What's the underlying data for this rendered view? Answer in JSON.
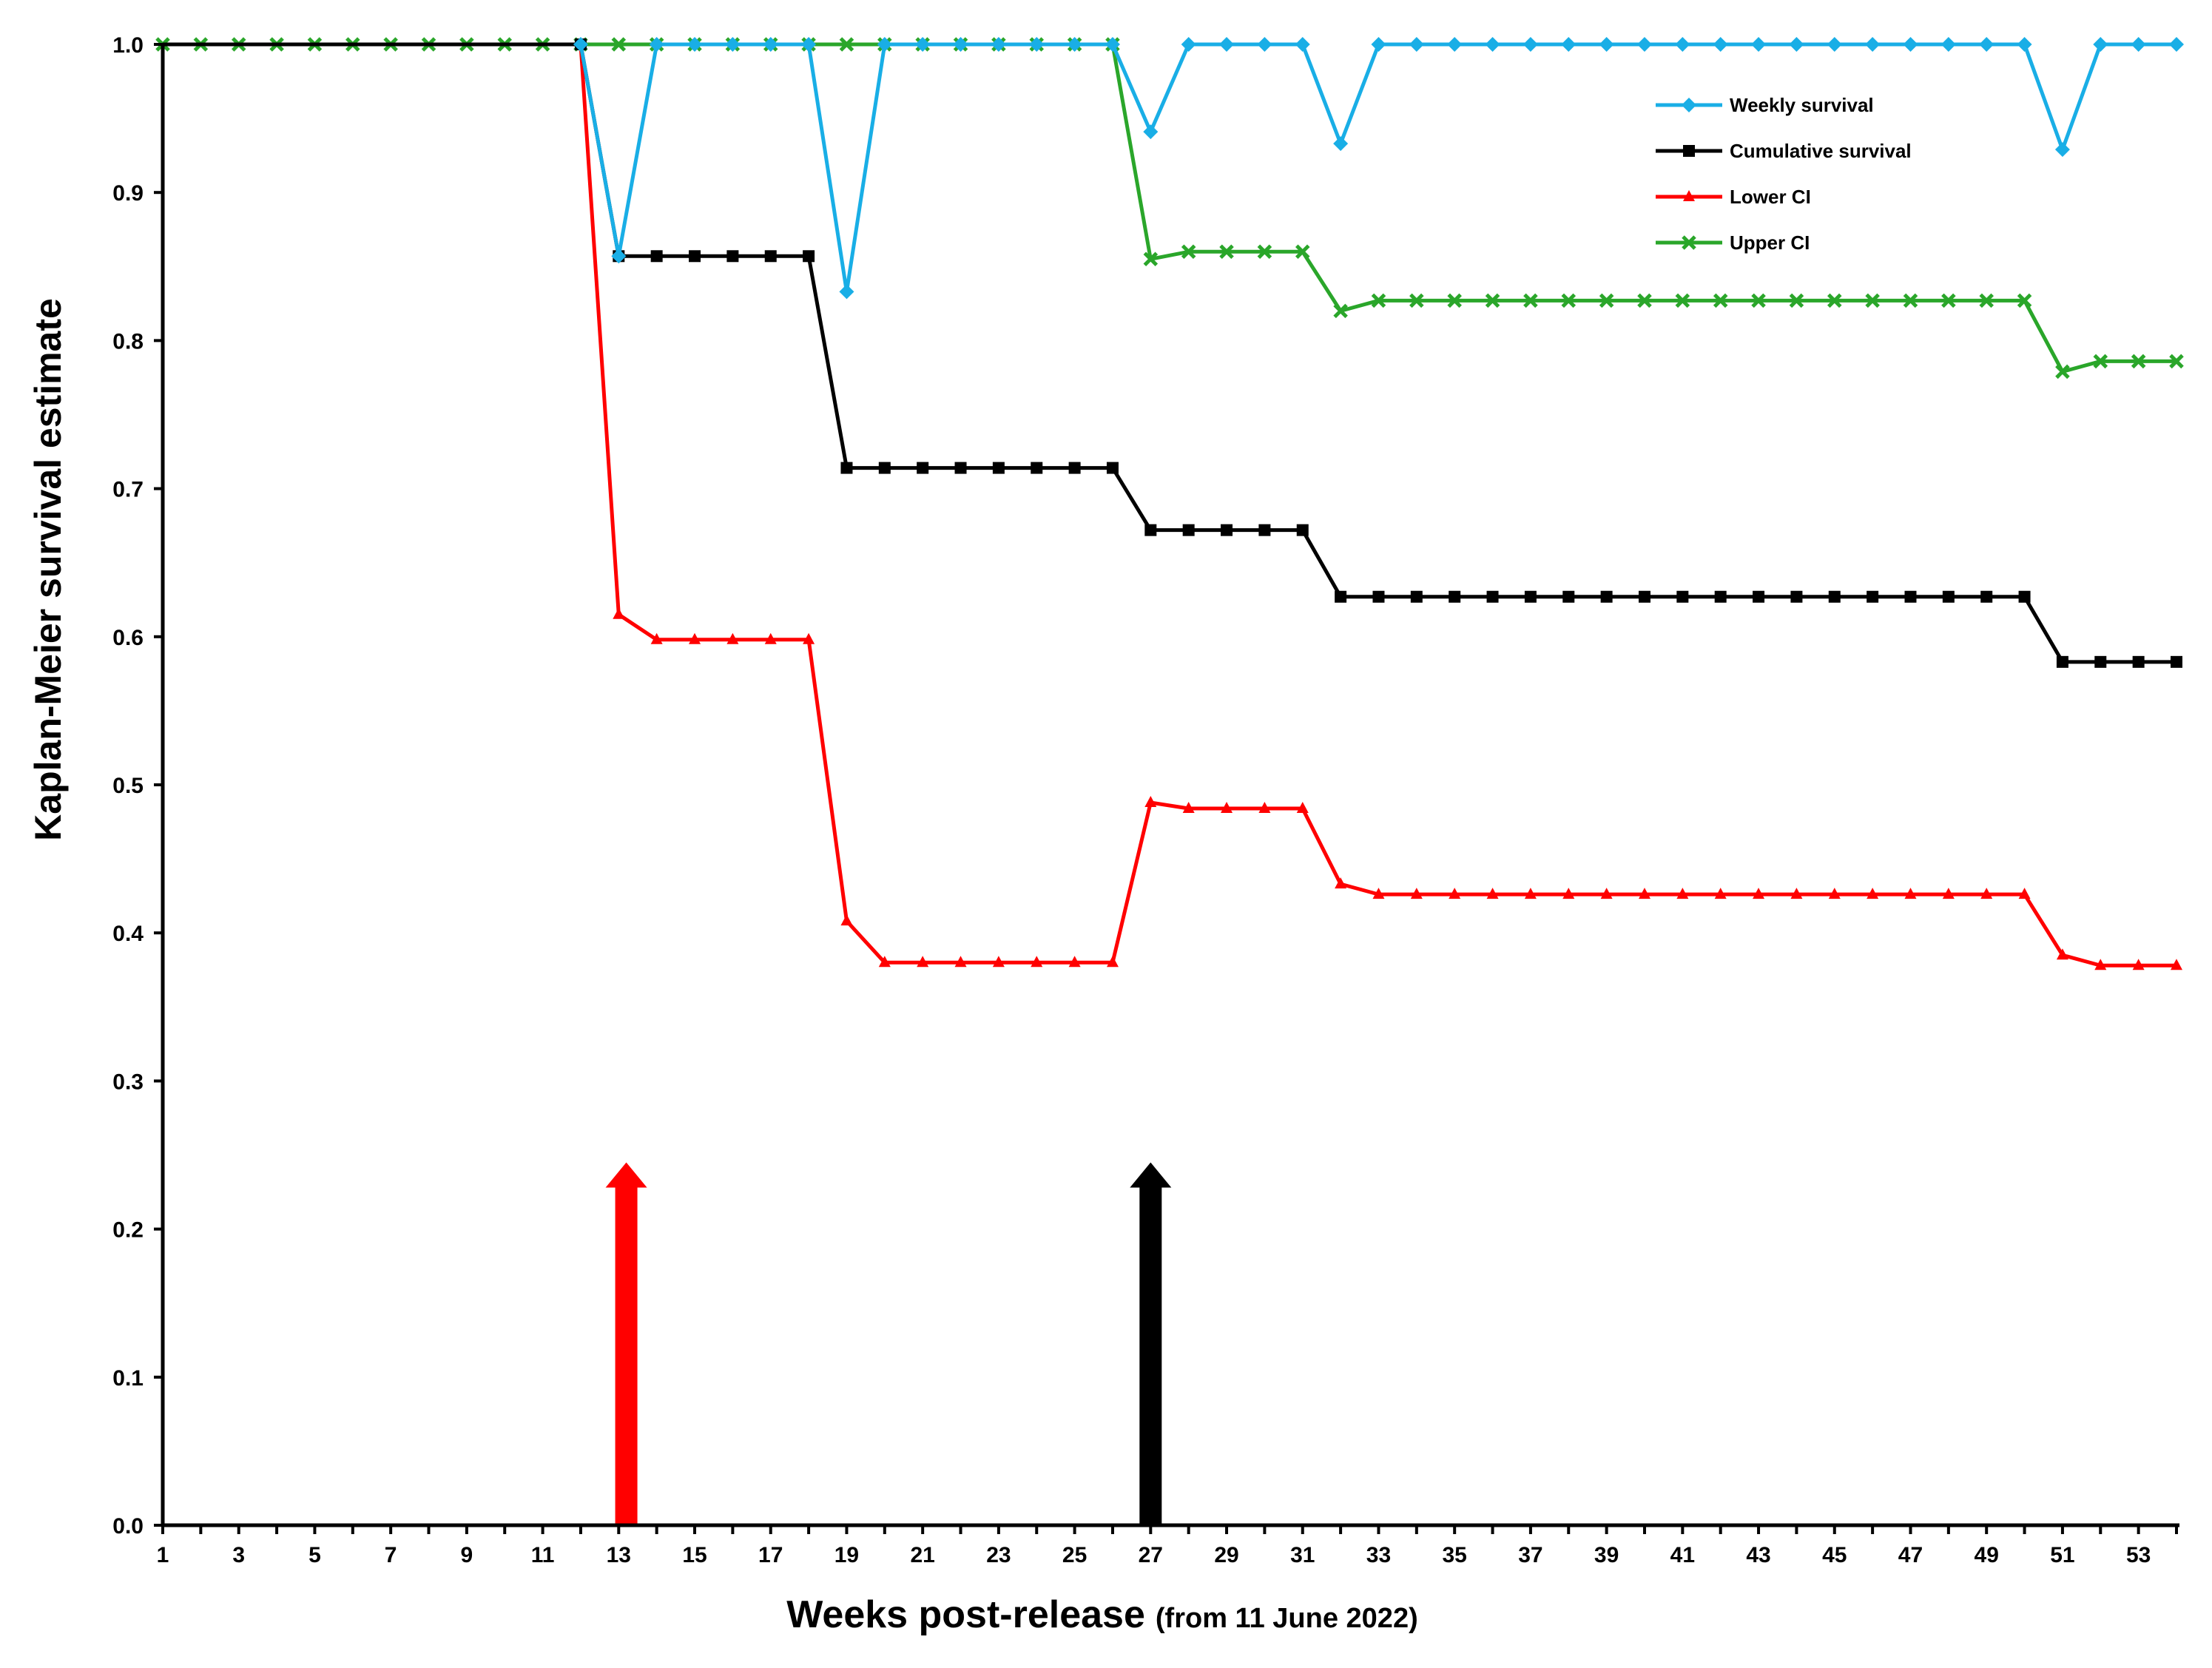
{
  "chart_data": {
    "type": "line",
    "xlabel": "Weeks post-release",
    "xlabel_note": "(from 11 June 2022)",
    "ylabel": "Kaplan-Meier survival estimate",
    "xlim": [
      1,
      54
    ],
    "ylim": [
      0,
      1
    ],
    "x_ticks": [
      1,
      3,
      5,
      7,
      9,
      11,
      13,
      15,
      17,
      19,
      21,
      23,
      25,
      27,
      29,
      31,
      33,
      35,
      37,
      39,
      41,
      43,
      45,
      47,
      49,
      51,
      53
    ],
    "y_ticks": [
      "0.0",
      "0.1",
      "0.2",
      "0.3",
      "0.4",
      "0.5",
      "0.6",
      "0.7",
      "0.8",
      "0.9",
      "1.0"
    ],
    "legend_position": "top-right",
    "series": [
      {
        "name": "Weekly survival",
        "color": "#19aee6",
        "marker": "diamond",
        "x": [
          12,
          13,
          14,
          15,
          16,
          17,
          18,
          19,
          20,
          21,
          22,
          23,
          24,
          25,
          26,
          27,
          28,
          29,
          30,
          31,
          32,
          33,
          34,
          35,
          36,
          37,
          38,
          39,
          40,
          41,
          42,
          43,
          44,
          45,
          46,
          47,
          48,
          49,
          50,
          51,
          52,
          53,
          54
        ],
        "values": [
          1.0,
          0.857,
          1.0,
          1.0,
          1.0,
          1.0,
          1.0,
          0.833,
          1.0,
          1.0,
          1.0,
          1.0,
          1.0,
          1.0,
          1.0,
          0.941,
          1.0,
          1.0,
          1.0,
          1.0,
          0.933,
          1.0,
          1.0,
          1.0,
          1.0,
          1.0,
          1.0,
          1.0,
          1.0,
          1.0,
          1.0,
          1.0,
          1.0,
          1.0,
          1.0,
          1.0,
          1.0,
          1.0,
          1.0,
          0.929,
          1.0,
          1.0,
          1.0
        ]
      },
      {
        "name": "Cumulative survival",
        "color": "#000000",
        "marker": "square",
        "x": [
          1,
          12,
          13,
          14,
          15,
          16,
          17,
          18,
          19,
          20,
          21,
          22,
          23,
          24,
          25,
          26,
          27,
          28,
          29,
          30,
          31,
          32,
          33,
          34,
          35,
          36,
          37,
          38,
          39,
          40,
          41,
          42,
          43,
          44,
          45,
          46,
          47,
          48,
          49,
          50,
          51,
          52,
          53,
          54
        ],
        "values": [
          1.0,
          1.0,
          0.857,
          0.857,
          0.857,
          0.857,
          0.857,
          0.857,
          0.714,
          0.714,
          0.714,
          0.714,
          0.714,
          0.714,
          0.714,
          0.714,
          0.672,
          0.672,
          0.672,
          0.672,
          0.672,
          0.627,
          0.627,
          0.627,
          0.627,
          0.627,
          0.627,
          0.627,
          0.627,
          0.627,
          0.627,
          0.627,
          0.627,
          0.627,
          0.627,
          0.627,
          0.627,
          0.627,
          0.627,
          0.627,
          0.583,
          0.583,
          0.583,
          0.583
        ]
      },
      {
        "name": "Lower CI",
        "color": "#ff0000",
        "marker": "triangle",
        "x": [
          12,
          13,
          14,
          15,
          16,
          17,
          18,
          19,
          20,
          21,
          22,
          23,
          24,
          25,
          26,
          27,
          28,
          29,
          30,
          31,
          32,
          33,
          34,
          35,
          36,
          37,
          38,
          39,
          40,
          41,
          42,
          43,
          44,
          45,
          46,
          47,
          48,
          49,
          50,
          51,
          52,
          53,
          54
        ],
        "values": [
          1.0,
          0.615,
          0.598,
          0.598,
          0.598,
          0.598,
          0.598,
          0.408,
          0.38,
          0.38,
          0.38,
          0.38,
          0.38,
          0.38,
          0.38,
          0.488,
          0.484,
          0.484,
          0.484,
          0.484,
          0.433,
          0.426,
          0.426,
          0.426,
          0.426,
          0.426,
          0.426,
          0.426,
          0.426,
          0.426,
          0.426,
          0.426,
          0.426,
          0.426,
          0.426,
          0.426,
          0.426,
          0.426,
          0.426,
          0.385,
          0.378,
          0.378,
          0.378
        ]
      },
      {
        "name": "Upper CI",
        "color": "#2aa62a",
        "marker": "x",
        "x": [
          1,
          2,
          3,
          4,
          5,
          6,
          7,
          8,
          9,
          10,
          11,
          12,
          13,
          14,
          15,
          16,
          17,
          18,
          19,
          20,
          21,
          22,
          23,
          24,
          25,
          26,
          27,
          28,
          29,
          30,
          31,
          32,
          33,
          34,
          35,
          36,
          37,
          38,
          39,
          40,
          41,
          42,
          43,
          44,
          45,
          46,
          47,
          48,
          49,
          50,
          51,
          52,
          53,
          54
        ],
        "values": [
          1.0,
          1.0,
          1.0,
          1.0,
          1.0,
          1.0,
          1.0,
          1.0,
          1.0,
          1.0,
          1.0,
          1.0,
          1.0,
          1.0,
          1.0,
          1.0,
          1.0,
          1.0,
          1.0,
          1.0,
          1.0,
          1.0,
          1.0,
          1.0,
          1.0,
          1.0,
          0.855,
          0.86,
          0.86,
          0.86,
          0.86,
          0.82,
          0.827,
          0.827,
          0.827,
          0.827,
          0.827,
          0.827,
          0.827,
          0.827,
          0.827,
          0.827,
          0.827,
          0.827,
          0.827,
          0.827,
          0.827,
          0.827,
          0.827,
          0.827,
          0.779,
          0.786,
          0.786,
          0.786
        ]
      }
    ],
    "annotations": [
      {
        "type": "arrow",
        "color": "#ff0000",
        "x": 13.2,
        "y_from": 0.0,
        "y_to": 0.245
      },
      {
        "type": "arrow",
        "color": "#000000",
        "x": 27.0,
        "y_from": 0.0,
        "y_to": 0.245
      }
    ]
  }
}
